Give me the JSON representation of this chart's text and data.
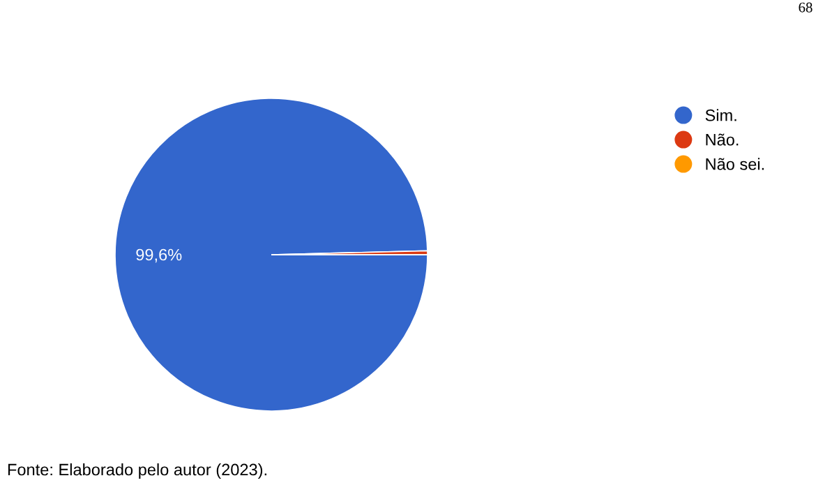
{
  "chart_data": {
    "type": "pie",
    "categories": [
      "Sim.",
      "Não.",
      "Não sei."
    ],
    "values": [
      99.6,
      0.4,
      0
    ],
    "colors": [
      "#3366cc",
      "#dc3912",
      "#ff9900"
    ],
    "value_labels": [
      "99,6%",
      null,
      null
    ],
    "legend": "right",
    "annotations": [
      "Fonte: Elaborado pelo autor (2023).",
      "68"
    ]
  }
}
